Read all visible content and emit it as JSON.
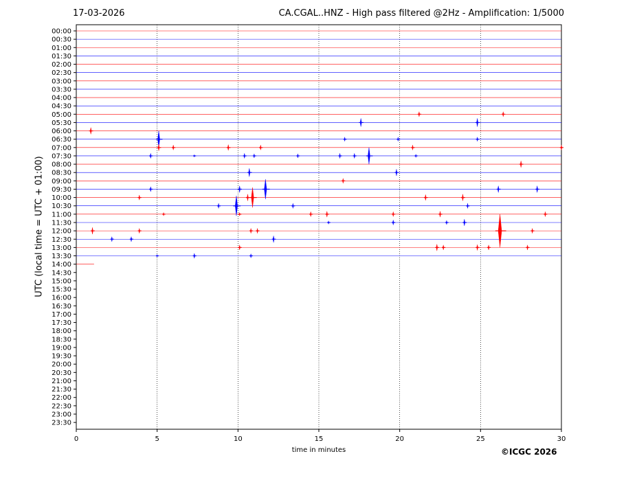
{
  "header": {
    "date": "17-03-2026",
    "title": "CA.CGAL..HNZ - High pass filtered @2Hz - Amplification: 1/5000"
  },
  "copyright": "©ICGC 2026",
  "chart_data": {
    "type": "line",
    "xlabel": "time in minutes",
    "ylabel": "UTC (local time = UTC + 01:00)",
    "xlim": [
      0,
      30
    ],
    "xticks": [
      0,
      5,
      10,
      15,
      20,
      25,
      30
    ],
    "grid": "vertical dotted lines at 5-minute intervals",
    "colors": {
      "odd_trace": "#ff0000",
      "even_trace": "#0000ff"
    },
    "rows": [
      "00:00",
      "00:30",
      "01:00",
      "01:30",
      "02:00",
      "02:30",
      "03:00",
      "03:30",
      "04:00",
      "04:30",
      "05:00",
      "05:30",
      "06:00",
      "06:30",
      "07:00",
      "07:30",
      "08:00",
      "08:30",
      "09:00",
      "09:30",
      "10:00",
      "10:30",
      "11:00",
      "11:30",
      "12:00",
      "12:30",
      "13:00",
      "13:30",
      "14:00",
      "14:30",
      "15:00",
      "15:30",
      "16:00",
      "16:30",
      "17:00",
      "17:30",
      "18:00",
      "18:30",
      "19:00",
      "19:30",
      "20:00",
      "20:30",
      "21:00",
      "21:30",
      "22:00",
      "22:30",
      "23:00",
      "23:30"
    ],
    "trace_end": {
      "row": "14:00",
      "minute": 1.1
    },
    "events": [
      {
        "row": "05:00",
        "t": 21.2,
        "a": 0.3
      },
      {
        "row": "05:00",
        "t": 26.4,
        "a": 0.3
      },
      {
        "row": "05:30",
        "t": 17.6,
        "a": 0.5
      },
      {
        "row": "05:30",
        "t": 24.8,
        "a": 0.5
      },
      {
        "row": "06:00",
        "t": 0.9,
        "a": 0.4
      },
      {
        "row": "06:30",
        "t": 5.1,
        "a": 1.0
      },
      {
        "row": "06:30",
        "t": 16.6,
        "a": 0.25
      },
      {
        "row": "06:30",
        "t": 19.9,
        "a": 0.25
      },
      {
        "row": "06:30",
        "t": 24.8,
        "a": 0.25
      },
      {
        "row": "07:00",
        "t": 5.1,
        "a": 0.4
      },
      {
        "row": "07:00",
        "t": 6.0,
        "a": 0.3
      },
      {
        "row": "07:00",
        "t": 9.4,
        "a": 0.35
      },
      {
        "row": "07:00",
        "t": 11.4,
        "a": 0.3
      },
      {
        "row": "07:00",
        "t": 20.8,
        "a": 0.3
      },
      {
        "row": "07:00",
        "t": 30.0,
        "a": 0.3
      },
      {
        "row": "07:30",
        "t": 4.6,
        "a": 0.3
      },
      {
        "row": "07:30",
        "t": 7.3,
        "a": 0.15
      },
      {
        "row": "07:30",
        "t": 10.4,
        "a": 0.3
      },
      {
        "row": "07:30",
        "t": 11.0,
        "a": 0.25
      },
      {
        "row": "07:30",
        "t": 13.7,
        "a": 0.25
      },
      {
        "row": "07:30",
        "t": 16.3,
        "a": 0.3
      },
      {
        "row": "07:30",
        "t": 17.2,
        "a": 0.3
      },
      {
        "row": "07:30",
        "t": 18.1,
        "a": 1.0
      },
      {
        "row": "07:30",
        "t": 21.0,
        "a": 0.2
      },
      {
        "row": "08:00",
        "t": 27.5,
        "a": 0.4
      },
      {
        "row": "08:30",
        "t": 10.7,
        "a": 0.5
      },
      {
        "row": "08:30",
        "t": 19.8,
        "a": 0.4
      },
      {
        "row": "09:00",
        "t": 16.5,
        "a": 0.3
      },
      {
        "row": "09:30",
        "t": 4.6,
        "a": 0.3
      },
      {
        "row": "09:30",
        "t": 10.1,
        "a": 0.4
      },
      {
        "row": "09:30",
        "t": 11.7,
        "a": 1.2
      },
      {
        "row": "09:30",
        "t": 26.1,
        "a": 0.4
      },
      {
        "row": "09:30",
        "t": 28.5,
        "a": 0.4
      },
      {
        "row": "10:00",
        "t": 3.9,
        "a": 0.3
      },
      {
        "row": "10:00",
        "t": 10.6,
        "a": 0.4
      },
      {
        "row": "10:00",
        "t": 10.9,
        "a": 1.2
      },
      {
        "row": "10:00",
        "t": 21.6,
        "a": 0.35
      },
      {
        "row": "10:00",
        "t": 23.9,
        "a": 0.4
      },
      {
        "row": "10:30",
        "t": 8.8,
        "a": 0.3
      },
      {
        "row": "10:30",
        "t": 9.9,
        "a": 1.2
      },
      {
        "row": "10:30",
        "t": 13.4,
        "a": 0.3
      },
      {
        "row": "10:30",
        "t": 24.2,
        "a": 0.3
      },
      {
        "row": "11:00",
        "t": 5.4,
        "a": 0.2
      },
      {
        "row": "11:00",
        "t": 10.1,
        "a": 0.2
      },
      {
        "row": "11:00",
        "t": 14.5,
        "a": 0.3
      },
      {
        "row": "11:00",
        "t": 15.5,
        "a": 0.35
      },
      {
        "row": "11:00",
        "t": 19.6,
        "a": 0.3
      },
      {
        "row": "11:00",
        "t": 22.5,
        "a": 0.35
      },
      {
        "row": "11:00",
        "t": 29.0,
        "a": 0.3
      },
      {
        "row": "11:30",
        "t": 15.6,
        "a": 0.2
      },
      {
        "row": "11:30",
        "t": 19.6,
        "a": 0.3
      },
      {
        "row": "11:30",
        "t": 22.9,
        "a": 0.25
      },
      {
        "row": "11:30",
        "t": 24.0,
        "a": 0.4
      },
      {
        "row": "12:00",
        "t": 1.0,
        "a": 0.4
      },
      {
        "row": "12:00",
        "t": 3.9,
        "a": 0.3
      },
      {
        "row": "12:00",
        "t": 10.8,
        "a": 0.3
      },
      {
        "row": "12:00",
        "t": 11.2,
        "a": 0.3
      },
      {
        "row": "12:00",
        "t": 26.2,
        "a": 2.0
      },
      {
        "row": "12:00",
        "t": 28.2,
        "a": 0.3
      },
      {
        "row": "12:30",
        "t": 2.2,
        "a": 0.3
      },
      {
        "row": "12:30",
        "t": 3.4,
        "a": 0.3
      },
      {
        "row": "12:30",
        "t": 12.2,
        "a": 0.4
      },
      {
        "row": "13:00",
        "t": 10.1,
        "a": 0.3
      },
      {
        "row": "13:00",
        "t": 22.3,
        "a": 0.4
      },
      {
        "row": "13:00",
        "t": 22.7,
        "a": 0.3
      },
      {
        "row": "13:00",
        "t": 24.8,
        "a": 0.35
      },
      {
        "row": "13:00",
        "t": 25.5,
        "a": 0.3
      },
      {
        "row": "13:00",
        "t": 27.9,
        "a": 0.3
      },
      {
        "row": "13:30",
        "t": 5.0,
        "a": 0.15
      },
      {
        "row": "13:30",
        "t": 7.3,
        "a": 0.3
      },
      {
        "row": "13:30",
        "t": 10.8,
        "a": 0.25
      }
    ]
  }
}
